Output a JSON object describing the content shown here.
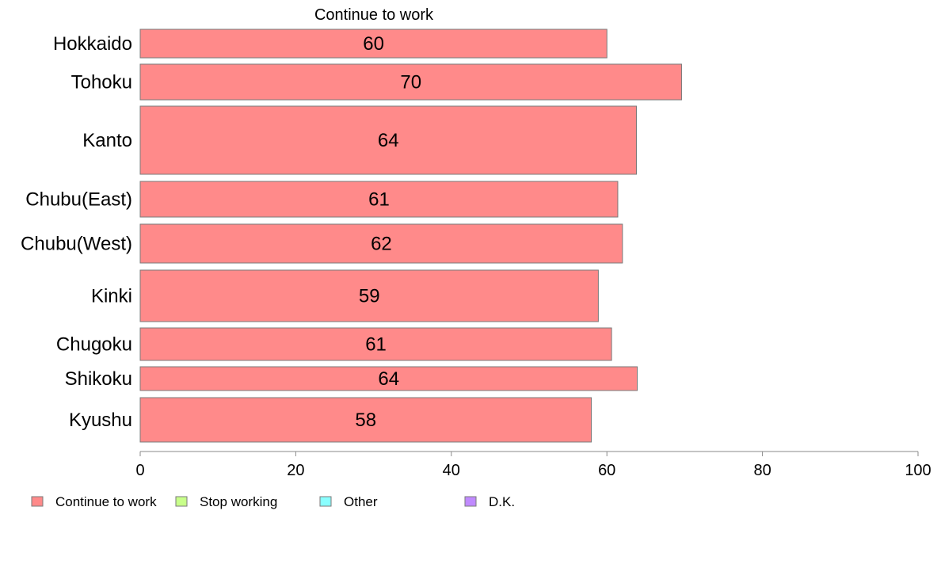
{
  "chart_data": {
    "type": "bar",
    "orientation": "horizontal",
    "title": "Continue to work",
    "categories": [
      "Hokkaido",
      "Tohoku",
      "Kanto",
      "Chubu(East)",
      "Chubu(West)",
      "Kinki",
      "Chugoku",
      "Shikoku",
      "Kyushu"
    ],
    "series": [
      {
        "name": "Continue to work",
        "values": [
          60,
          69.6,
          63.8,
          61.4,
          62,
          58.9,
          60.6,
          63.9,
          58
        ],
        "labels": [
          "60",
          "70",
          "64",
          "61",
          "62",
          "59",
          "61",
          "64",
          "58"
        ],
        "color": "#ff8a8a"
      }
    ],
    "xlim": [
      0,
      100
    ],
    "xticks": [
      "0",
      "20",
      "40",
      "60",
      "80",
      "100"
    ],
    "grid": false,
    "legend": {
      "placement": "bottom",
      "entries": [
        {
          "label": "Continue to work",
          "color": "#ff8a8a"
        },
        {
          "label": "Stop working",
          "color": "#c8ff8a"
        },
        {
          "label": "Other",
          "color": "#8affff"
        },
        {
          "label": "D.K.",
          "color": "#c08aff"
        }
      ]
    }
  }
}
